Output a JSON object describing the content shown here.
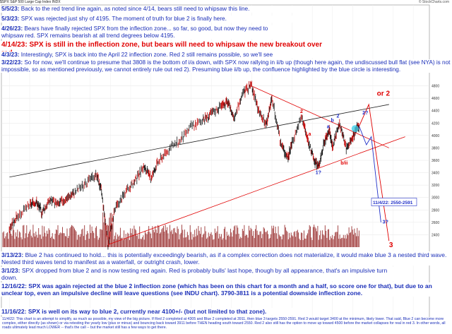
{
  "header": {
    "symbol": "$SPX",
    "name": "S&P 500 Large Cap Index  INDX",
    "watermark": "© StockCharts.com"
  },
  "annotations": [
    {
      "date": "5/5/23:",
      "text": "Back to the red trend line again, as noted since 4/14, bears still need to whipsaw this line.",
      "color": "#1a2eb8"
    },
    {
      "date": "5/3/23:",
      "text": "SPX was rejected just shy of 4195.  The moment of truth for blue 2 is finally here.",
      "color": "#1a2eb8"
    },
    {
      "date": "4/26/23:",
      "text": "Bears have finally rejected SPX from the inflection zone... so far, so good, but now they need to whipsaw red.  SPX remains bearish at all trend degrees below 4195.",
      "color": "#1a2eb8"
    },
    {
      "date": "4/14/23:",
      "text": "SPX is still in the inflection zone, but bears will need to whipsaw the new breakout over red.",
      "color": "#e00000"
    },
    {
      "date": "4/3/23:",
      "text": "Interestingly, SPX is back into the April 22 inflection zone.  Red 2 still remains possible, so we'll see if/how it reacts to this.",
      "color": "#1a2eb8"
    },
    {
      "date": "3/22/23:",
      "text": "So for now, we'll continue to presume that 3808 is the bottom of i/a down, with SPX now rallying in ii/b up (though here again, the undiscussed bull flat (see NYA) is not impossible, so as mentioned previously, we cannot entirely rule out red 2).  Presuming blue ii/b up, the confluence highlighted by the blue circle is interesting.",
      "color": "#1a2eb8"
    },
    {
      "date": "3/13/23:",
      "text": "Blue 2 has continued to hold... this is potentially exceedingly bearish, as if a complex correction does not materialize, it would make blue 3 a nested third wave.  Nested third waves tend to manifest as a waterfall, or outright crash, lower.",
      "color": "#1a2eb8"
    },
    {
      "date": "3/1/23:",
      "text": "SPX dropped from blue 2 and is now testing red again.  Red is probably bulls' last hope, though by all appearance, that's an impulsive turn down.",
      "color": "#1a2eb8"
    },
    {
      "date": "12/16/22:",
      "text": "SPX was again rejected at the blue 2 inflection zone (which has been on this chart for a month and a half, so score one for that), but due to an unclear top, even an impulsive decline will leave questions (see INDU chart).  3790-3811 is a potential downside inflection zone.",
      "color": "#1a2eb8"
    },
    {
      "date": "11/16/22:",
      "text": "SPX is well on its way to blue 2, currently near 4100+/- (but not limited to that zone).",
      "color": "#1a2eb8"
    }
  ],
  "footer": "11/4/22: This chart is an attempt to simplify, as much as possible, my view of the big picture.  If Red 2 completed at 4305 and Blue 2 completed at 3911, then blue 3 targets 2550-2591.  Red 3 would target 3400 at the minimum, likely lower.  That said, Blue 2 can become more complex, either directly (as shown) or via retesting the yearly low (plus or minus) and bouncing back toward 3911 before THEN heading south toward 2550.  Red 2 also still has the option to move up toward 4500 before the market collapses for real in red 3.  In other words, all roads ultimately lead much LOWER -- that's the call -- but the market still has a few ways to get there.",
  "chart_data": {
    "type": "line",
    "title": "",
    "xlabel": "",
    "ylabel": "",
    "ylim": [
      2200,
      5000
    ],
    "x_range": [
      2018.9,
      2024.2
    ],
    "grid": true,
    "series": [
      {
        "points": [
          [
            2019.0,
            2510
          ],
          [
            2019.1,
            2700
          ],
          [
            2019.25,
            2870
          ],
          [
            2019.33,
            2940
          ],
          [
            2019.4,
            2760
          ],
          [
            2019.5,
            2960
          ],
          [
            2019.6,
            2890
          ],
          [
            2019.7,
            2980
          ],
          [
            2019.8,
            3080
          ],
          [
            2019.95,
            3230
          ],
          [
            2020.08,
            3380
          ],
          [
            2020.14,
            3100
          ],
          [
            2020.22,
            2240
          ],
          [
            2020.3,
            2800
          ],
          [
            2020.42,
            3050
          ],
          [
            2020.55,
            3250
          ],
          [
            2020.66,
            3500
          ],
          [
            2020.75,
            3300
          ],
          [
            2020.83,
            3550
          ],
          [
            2020.95,
            3750
          ],
          [
            2021.1,
            3900
          ],
          [
            2021.25,
            4150
          ],
          [
            2021.4,
            4250
          ],
          [
            2021.5,
            4350
          ],
          [
            2021.62,
            4480
          ],
          [
            2021.7,
            4530
          ],
          [
            2021.78,
            4300
          ],
          [
            2021.9,
            4700
          ],
          [
            2022.0,
            4796
          ],
          [
            2022.08,
            4400
          ],
          [
            2022.18,
            4170
          ],
          [
            2022.25,
            4600
          ],
          [
            2022.36,
            3860
          ],
          [
            2022.45,
            3640
          ],
          [
            2022.5,
            3900
          ],
          [
            2022.62,
            4305
          ],
          [
            2022.7,
            3900
          ],
          [
            2022.78,
            3577
          ],
          [
            2022.83,
            3491
          ],
          [
            2022.9,
            3900
          ],
          [
            2022.96,
            4100
          ],
          [
            2023.0,
            3808
          ],
          [
            2023.08,
            4195
          ],
          [
            2023.17,
            3808
          ],
          [
            2023.25,
            3950
          ],
          [
            2023.29,
            4110
          ],
          [
            2023.33,
            4150
          ]
        ]
      }
    ],
    "volume_axis": true,
    "wave_labels": [
      {
        "text": "1",
        "x": 2022.42,
        "y": 3660,
        "color": "#e00000"
      },
      {
        "text": "2",
        "x": 2022.6,
        "y": 4360,
        "color": "#e00000"
      },
      {
        "text": "a",
        "x": 2022.7,
        "y": 4000,
        "color": "#e00000"
      },
      {
        "text": "b/ii",
        "x": 2023.1,
        "y": 3530,
        "color": "#e00000"
      },
      {
        "text": "or 2",
        "x": 2023.55,
        "y": 4640,
        "color": "#e00000"
      },
      {
        "text": "3",
        "x": 2023.7,
        "y": 2200,
        "color": "#e00000"
      },
      {
        "text": "b",
        "x": 2022.98,
        "y": 4220,
        "color": "#2030c8"
      },
      {
        "text": "2",
        "x": 2023.05,
        "y": 4290,
        "color": "#2030c8"
      },
      {
        "text": "a",
        "x": 2022.93,
        "y": 4120,
        "color": "#2030c8"
      },
      {
        "text": "2?",
        "x": 2023.37,
        "y": 4340,
        "color": "#2030c8"
      },
      {
        "text": "1?",
        "x": 2022.79,
        "y": 3380,
        "color": "#2030c8"
      },
      {
        "text": "3?",
        "x": 2023.62,
        "y": 2580,
        "color": "#2030c8"
      }
    ],
    "target_box": {
      "text": "11/4/22: 2550-2591",
      "x": 2023.5,
      "y": 2900
    },
    "trend_lines": [
      {
        "color": "#e00000",
        "from": [
          2020.22,
          2240
        ],
        "to": [
          2023.9,
          3980
        ]
      },
      {
        "color": "#e00000",
        "from": [
          2022.0,
          4796
        ],
        "to": [
          2023.7,
          3800
        ]
      },
      {
        "color": "#222222",
        "from": [
          2019.0,
          3330
        ],
        "to": [
          2023.7,
          4500
        ]
      }
    ],
    "projections": [
      {
        "color": "#2030c8",
        "points": [
          [
            2023.33,
            4150
          ],
          [
            2023.42,
            3850
          ],
          [
            2023.48,
            3980
          ],
          [
            2023.6,
            2600
          ]
        ]
      },
      {
        "color": "#e00000",
        "points": [
          [
            2023.33,
            4150
          ],
          [
            2023.45,
            4500
          ],
          [
            2023.7,
            2300
          ]
        ]
      }
    ]
  }
}
